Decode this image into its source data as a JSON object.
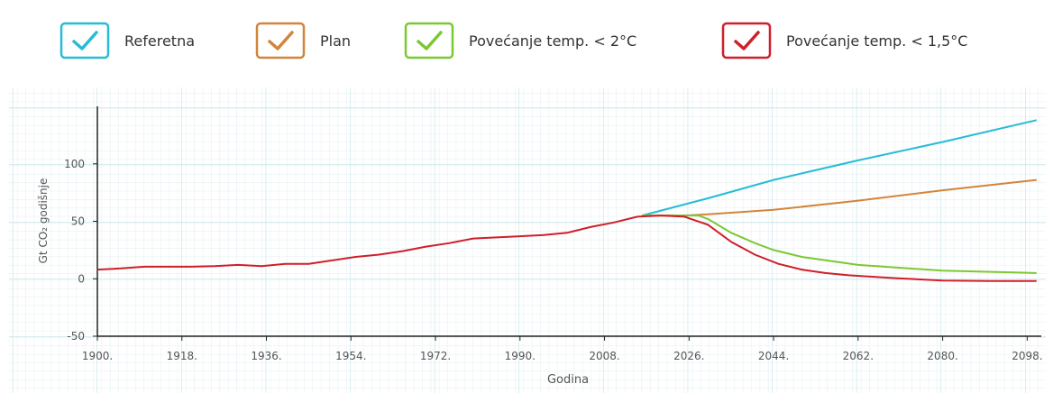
{
  "chart_data": {
    "type": "line",
    "y_label": "Gt CO₂ godišnje",
    "x_label": "Godina",
    "xlim": [
      1900,
      2101
    ],
    "ylim": [
      -50,
      150
    ],
    "xticks": [
      {
        "value": 1900,
        "label": "1900."
      },
      {
        "value": 1918,
        "label": "1918."
      },
      {
        "value": 1936,
        "label": "1936."
      },
      {
        "value": 1954,
        "label": "1954."
      },
      {
        "value": 1972,
        "label": "1972."
      },
      {
        "value": 1990,
        "label": "1990."
      },
      {
        "value": 2008,
        "label": "2008."
      },
      {
        "value": 2026,
        "label": "2026."
      },
      {
        "value": 2044,
        "label": "2044."
      },
      {
        "value": 2062,
        "label": "2062."
      },
      {
        "value": 2080,
        "label": "2080."
      },
      {
        "value": 2098,
        "label": "2098."
      }
    ],
    "yticks": [
      -50,
      0,
      50,
      100
    ],
    "series": [
      {
        "name": "Referetna",
        "color": "#26bcd6",
        "x": [
          2016,
          2030,
          2044,
          2062,
          2080,
          2100
        ],
        "values": [
          55,
          70,
          86,
          103,
          119,
          138
        ]
      },
      {
        "name": "Plan",
        "color": "#d2853a",
        "x": [
          2016,
          2025,
          2030,
          2044,
          2062,
          2080,
          2100
        ],
        "values": [
          55,
          55,
          56,
          60,
          68,
          77,
          86
        ]
      },
      {
        "name": "Povećanje temp. < 2°C",
        "color": "#7cc832",
        "x": [
          2016,
          2028,
          2030,
          2035,
          2040,
          2044,
          2050,
          2062,
          2080,
          2100
        ],
        "values": [
          55,
          55,
          52,
          40,
          31,
          25,
          19,
          12,
          7,
          5
        ]
      },
      {
        "name": "Povećanje temp. < 1,5°C",
        "color": "#cf1f2a",
        "x": [
          1900,
          1905,
          1910,
          1915,
          1920,
          1925,
          1930,
          1935,
          1940,
          1945,
          1950,
          1955,
          1960,
          1965,
          1970,
          1975,
          1980,
          1985,
          1990,
          1995,
          2000,
          2005,
          2010,
          2015,
          2020,
          2025,
          2030,
          2035,
          2040,
          2045,
          2050,
          2055,
          2060,
          2070,
          2080,
          2090,
          2100
        ],
        "values": [
          8,
          9,
          10.5,
          10.5,
          10.5,
          11,
          12,
          11,
          13,
          13,
          16,
          19,
          21,
          24,
          28,
          31,
          35,
          36,
          37,
          38,
          40,
          45,
          49,
          54,
          55,
          54,
          47,
          32,
          21,
          13,
          8,
          5,
          3,
          0.5,
          -1.5,
          -2,
          -2
        ]
      }
    ]
  }
}
